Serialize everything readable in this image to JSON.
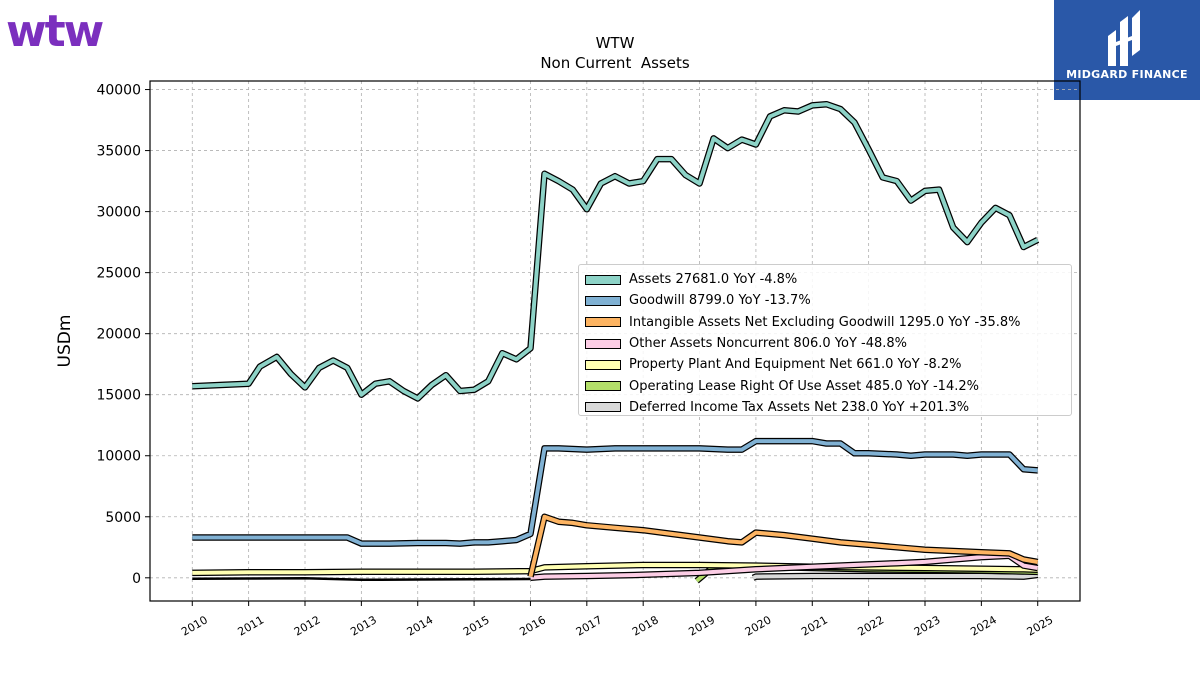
{
  "logos": {
    "left": "wtw",
    "right": "MIDGARD FINANCE"
  },
  "colors": {
    "brand_purple": "#7b2fbe",
    "midgard_blue": "#2a58a8"
  },
  "chart_data": {
    "type": "line",
    "title": "WTW",
    "subtitle": "Non Current  Assets",
    "xlabel": "",
    "ylabel": "USDm",
    "xlim": [
      2009.25,
      2025.75
    ],
    "ylim": [
      -1900,
      40700
    ],
    "x_ticks": [
      "2010",
      "2011",
      "2012",
      "2013",
      "2014",
      "2015",
      "2016",
      "2017",
      "2018",
      "2019",
      "2020",
      "2021",
      "2022",
      "2023",
      "2024",
      "2025"
    ],
    "y_ticks": [
      0,
      5000,
      10000,
      15000,
      20000,
      25000,
      30000,
      35000,
      40000
    ],
    "grid": true,
    "legend_position": "center-right",
    "series": [
      {
        "name": "Assets",
        "legend": "Assets  27681.0 YoY -4.8%",
        "color": "#8dd3c7",
        "points": [
          [
            2010.0,
            15700
          ],
          [
            2011.0,
            15900
          ],
          [
            2011.2,
            17300
          ],
          [
            2011.5,
            18100
          ],
          [
            2011.75,
            16700
          ],
          [
            2012.0,
            15600
          ],
          [
            2012.25,
            17200
          ],
          [
            2012.5,
            17800
          ],
          [
            2012.75,
            17200
          ],
          [
            2013.0,
            15000
          ],
          [
            2013.25,
            15900
          ],
          [
            2013.5,
            16100
          ],
          [
            2013.75,
            15300
          ],
          [
            2014.0,
            14700
          ],
          [
            2014.25,
            15800
          ],
          [
            2014.5,
            16600
          ],
          [
            2014.75,
            15300
          ],
          [
            2015.0,
            15400
          ],
          [
            2015.25,
            16100
          ],
          [
            2015.5,
            18400
          ],
          [
            2015.75,
            17900
          ],
          [
            2016.0,
            18800
          ],
          [
            2016.25,
            33100
          ],
          [
            2016.5,
            32500
          ],
          [
            2016.75,
            31800
          ],
          [
            2017.0,
            30200
          ],
          [
            2017.25,
            32300
          ],
          [
            2017.5,
            32900
          ],
          [
            2017.75,
            32300
          ],
          [
            2018.0,
            32500
          ],
          [
            2018.25,
            34300
          ],
          [
            2018.5,
            34300
          ],
          [
            2018.75,
            33000
          ],
          [
            2019.0,
            32300
          ],
          [
            2019.25,
            36000
          ],
          [
            2019.5,
            35200
          ],
          [
            2019.75,
            35900
          ],
          [
            2020.0,
            35500
          ],
          [
            2020.25,
            37800
          ],
          [
            2020.5,
            38300
          ],
          [
            2020.75,
            38200
          ],
          [
            2021.0,
            38700
          ],
          [
            2021.25,
            38800
          ],
          [
            2021.5,
            38400
          ],
          [
            2021.75,
            37300
          ],
          [
            2022.0,
            35100
          ],
          [
            2022.25,
            32800
          ],
          [
            2022.5,
            32500
          ],
          [
            2022.75,
            30900
          ],
          [
            2023.0,
            31700
          ],
          [
            2023.25,
            31800
          ],
          [
            2023.5,
            28700
          ],
          [
            2023.75,
            27500
          ],
          [
            2024.0,
            29100
          ],
          [
            2024.25,
            30300
          ],
          [
            2024.5,
            29700
          ],
          [
            2024.75,
            27100
          ],
          [
            2025.0,
            27681
          ]
        ]
      },
      {
        "name": "Goodwill",
        "legend": "Goodwill  8799.0 YoY -13.7%",
        "color": "#80b1d3",
        "points": [
          [
            2010.0,
            3300
          ],
          [
            2011.0,
            3300
          ],
          [
            2012.0,
            3300
          ],
          [
            2012.75,
            3300
          ],
          [
            2013.0,
            2800
          ],
          [
            2013.5,
            2800
          ],
          [
            2014.0,
            2850
          ],
          [
            2014.5,
            2850
          ],
          [
            2014.75,
            2800
          ],
          [
            2015.0,
            2900
          ],
          [
            2015.25,
            2900
          ],
          [
            2015.5,
            3000
          ],
          [
            2015.75,
            3100
          ],
          [
            2016.0,
            3600
          ],
          [
            2016.25,
            10600
          ],
          [
            2016.5,
            10600
          ],
          [
            2017.0,
            10500
          ],
          [
            2017.5,
            10600
          ],
          [
            2018.0,
            10600
          ],
          [
            2018.5,
            10600
          ],
          [
            2019.0,
            10600
          ],
          [
            2019.5,
            10500
          ],
          [
            2019.75,
            10500
          ],
          [
            2020.0,
            11200
          ],
          [
            2020.5,
            11200
          ],
          [
            2021.0,
            11200
          ],
          [
            2021.25,
            11000
          ],
          [
            2021.5,
            11000
          ],
          [
            2021.75,
            10200
          ],
          [
            2022.0,
            10200
          ],
          [
            2022.5,
            10100
          ],
          [
            2022.75,
            10000
          ],
          [
            2023.0,
            10100
          ],
          [
            2023.5,
            10100
          ],
          [
            2023.75,
            10000
          ],
          [
            2024.0,
            10100
          ],
          [
            2024.5,
            10100
          ],
          [
            2024.75,
            8900
          ],
          [
            2025.0,
            8799
          ]
        ]
      },
      {
        "name": "Intangible Assets Net Excluding Goodwill",
        "legend": "Intangible Assets Net Excluding Goodwill  1295.0 YoY -35.8%",
        "color": "#fdb462",
        "points": [
          [
            2016.0,
            100
          ],
          [
            2016.25,
            5000
          ],
          [
            2016.5,
            4600
          ],
          [
            2016.75,
            4500
          ],
          [
            2017.0,
            4300
          ],
          [
            2017.5,
            4100
          ],
          [
            2018.0,
            3900
          ],
          [
            2018.5,
            3600
          ],
          [
            2019.0,
            3300
          ],
          [
            2019.5,
            3000
          ],
          [
            2019.75,
            2900
          ],
          [
            2020.0,
            3700
          ],
          [
            2020.5,
            3500
          ],
          [
            2021.0,
            3200
          ],
          [
            2021.5,
            2900
          ],
          [
            2022.0,
            2700
          ],
          [
            2022.5,
            2500
          ],
          [
            2023.0,
            2300
          ],
          [
            2023.5,
            2200
          ],
          [
            2024.0,
            2100
          ],
          [
            2024.5,
            2000
          ],
          [
            2024.75,
            1500
          ],
          [
            2025.0,
            1295
          ]
        ]
      },
      {
        "name": "Other Assets Noncurrent",
        "legend": "Other Assets Noncurrent  806.0 YoY -48.8%",
        "color": "#fccde5",
        "points": [
          [
            2016.0,
            0
          ],
          [
            2016.25,
            100
          ],
          [
            2017.0,
            150
          ],
          [
            2018.0,
            250
          ],
          [
            2019.0,
            400
          ],
          [
            2020.0,
            700
          ],
          [
            2021.0,
            900
          ],
          [
            2022.0,
            1100
          ],
          [
            2022.5,
            1200
          ],
          [
            2023.0,
            1300
          ],
          [
            2023.5,
            1500
          ],
          [
            2024.0,
            1700
          ],
          [
            2024.5,
            1800
          ],
          [
            2024.75,
            1000
          ],
          [
            2025.0,
            806
          ]
        ]
      },
      {
        "name": "Property Plant And Equipment Net",
        "legend": "Property Plant And Equipment Net  661.0 YoY -8.2%",
        "color": "#ffffb3",
        "points": [
          [
            2010.0,
            400
          ],
          [
            2011.0,
            450
          ],
          [
            2012.0,
            450
          ],
          [
            2013.0,
            500
          ],
          [
            2014.0,
            500
          ],
          [
            2015.0,
            500
          ],
          [
            2016.0,
            550
          ],
          [
            2016.25,
            850
          ],
          [
            2017.0,
            950
          ],
          [
            2018.0,
            1050
          ],
          [
            2019.0,
            1050
          ],
          [
            2020.0,
            1000
          ],
          [
            2021.0,
            900
          ],
          [
            2022.0,
            850
          ],
          [
            2023.0,
            800
          ],
          [
            2024.0,
            750
          ],
          [
            2024.75,
            700
          ],
          [
            2025.0,
            661
          ]
        ]
      },
      {
        "name": "Operating Lease Right Of Use Asset",
        "legend": "Operating Lease Right Of Use Asset  485.0 YoY -14.2%",
        "color": "#b3de69",
        "points": [
          [
            2018.95,
            -250
          ],
          [
            2019.25,
            900
          ],
          [
            2020.0,
            850
          ],
          [
            2020.5,
            850
          ],
          [
            2021.0,
            800
          ],
          [
            2022.0,
            700
          ],
          [
            2023.0,
            650
          ],
          [
            2024.0,
            600
          ],
          [
            2024.75,
            520
          ],
          [
            2025.0,
            485
          ]
        ]
      },
      {
        "name": "Deferred Income Tax Assets Net",
        "legend": "Deferred Income Tax Assets Net  238.0 YoY +201.3%",
        "color": "#d9d9d9",
        "points": [
          [
            2019.95,
            0
          ],
          [
            2020.0,
            100
          ],
          [
            2021.0,
            150
          ],
          [
            2022.0,
            150
          ],
          [
            2023.0,
            150
          ],
          [
            2024.0,
            150
          ],
          [
            2024.75,
            100
          ],
          [
            2025.0,
            238
          ]
        ]
      }
    ],
    "baseline_series": {
      "name": "",
      "color": "#000000",
      "points": [
        [
          2010.0,
          -80
        ],
        [
          2011.0,
          -60
        ],
        [
          2012.0,
          -40
        ],
        [
          2013.0,
          -160
        ],
        [
          2014.0,
          -140
        ],
        [
          2015.0,
          -120
        ],
        [
          2016.0,
          -100
        ]
      ]
    }
  }
}
